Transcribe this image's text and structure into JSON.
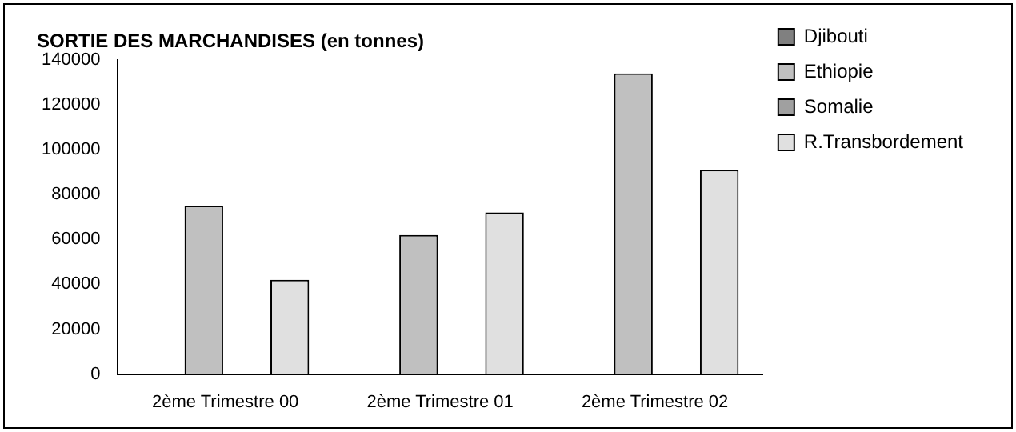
{
  "chart_data": {
    "type": "bar",
    "title": "SORTIE DES MARCHANDISES (en tonnes)",
    "categories": [
      "2ème Trimestre 00",
      "2ème Trimestre 01",
      "2ème Trimestre 02"
    ],
    "series": [
      {
        "name": "Djibouti",
        "color": "#808080",
        "values": [
          0,
          0,
          0
        ]
      },
      {
        "name": "Ethiopie",
        "color": "#c0c0c0",
        "values": [
          75000,
          62000,
          134000
        ]
      },
      {
        "name": "Somalie",
        "color": "#a0a0a0",
        "values": [
          0,
          0,
          0
        ]
      },
      {
        "name": "R.Transbordement",
        "color": "#e0e0e0",
        "values": [
          42000,
          72000,
          91000
        ]
      }
    ],
    "ylim": [
      0,
      140000
    ],
    "yticks": [
      0,
      20000,
      40000,
      60000,
      80000,
      100000,
      120000,
      140000
    ],
    "grid": false,
    "legend": "top right"
  }
}
